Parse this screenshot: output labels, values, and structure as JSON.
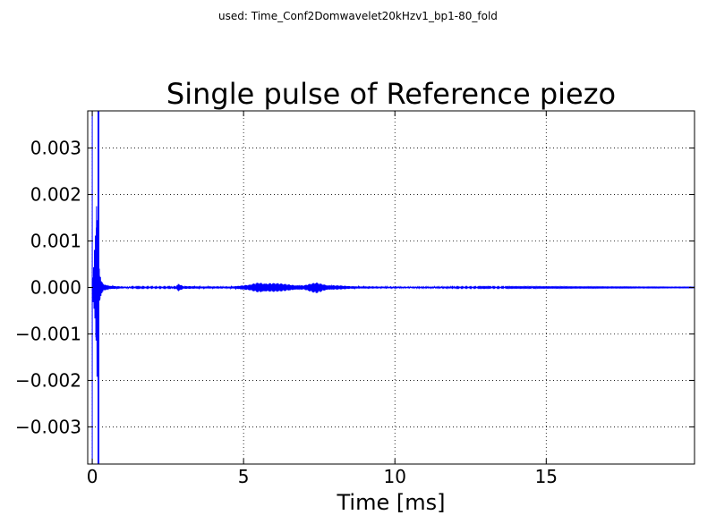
{
  "figure": {
    "suptitle": "used: Time_Conf2Domwavelet20kHzv1_bp1-80_fold"
  },
  "chart_data": {
    "type": "line",
    "title": "Single pulse of Reference piezo",
    "xlabel": "Time [ms]",
    "ylabel": "",
    "xlim": [
      -0.15,
      19.9
    ],
    "ylim": [
      -0.0038,
      0.0038
    ],
    "grid": true,
    "grid_style": "dotted",
    "line_color": "#0000ff",
    "x_ticks": [
      0,
      5,
      10,
      15
    ],
    "x_tick_labels": [
      "0",
      "5",
      "10",
      "15"
    ],
    "y_ticks": [
      0.003,
      0.002,
      0.001,
      0.0,
      -0.001,
      -0.002,
      -0.003
    ],
    "y_tick_labels": [
      "0.003",
      "0.002",
      "0.001",
      "0.000",
      "−0.001",
      "−0.002",
      "−0.003"
    ],
    "series": [
      {
        "color": "#0000ff",
        "envelope": [
          {
            "t": 0.0,
            "max": 0.0002,
            "min": -0.0003
          },
          {
            "t": 0.05,
            "max": 0.0005,
            "min": -0.0004
          },
          {
            "t": 0.1,
            "max": 0.0012,
            "min": -0.0008
          },
          {
            "t": 0.14,
            "max": 0.0022,
            "min": -0.0021
          },
          {
            "t": 0.17,
            "max": 0.0016,
            "min": -0.0022
          },
          {
            "t": 0.2,
            "max": 0.0007,
            "min": -0.0005
          },
          {
            "t": 0.25,
            "max": 0.0004,
            "min": -0.0004
          },
          {
            "t": 0.3,
            "max": 0.00015,
            "min": -0.00015
          },
          {
            "t": 0.4,
            "max": 8e-05,
            "min": -8e-05
          },
          {
            "t": 0.6,
            "max": 4e-05,
            "min": -4e-05
          },
          {
            "t": 1.0,
            "max": 2e-05,
            "min": -2e-05
          },
          {
            "t": 1.3,
            "max": 1e-05,
            "min": -1e-05
          },
          {
            "t": 2.75,
            "max": 1e-05,
            "min": -1e-05
          },
          {
            "t": 2.85,
            "max": 9e-05,
            "min": -9e-05
          },
          {
            "t": 3.0,
            "max": 3e-05,
            "min": -3e-05
          },
          {
            "t": 4.5,
            "max": 2e-05,
            "min": -2e-05
          },
          {
            "t": 5.2,
            "max": 6e-05,
            "min": -6e-05
          },
          {
            "t": 5.5,
            "max": 0.00012,
            "min": -0.00012
          },
          {
            "t": 6.0,
            "max": 0.0001,
            "min": -0.0001
          },
          {
            "t": 6.5,
            "max": 7e-05,
            "min": -7e-05
          },
          {
            "t": 7.0,
            "max": 5e-05,
            "min": -5e-05
          },
          {
            "t": 7.4,
            "max": 0.00011,
            "min": -0.00013
          },
          {
            "t": 7.8,
            "max": 6e-05,
            "min": -6e-05
          },
          {
            "t": 8.5,
            "max": 3e-05,
            "min": -3e-05
          },
          {
            "t": 9.5,
            "max": 2e-05,
            "min": -2e-05
          },
          {
            "t": 12.0,
            "max": 1e-05,
            "min": -1e-05
          },
          {
            "t": 19.9,
            "max": 5e-06,
            "min": -5e-06
          }
        ],
        "spikes": [
          {
            "t": 0.205,
            "value": 0.0038
          },
          {
            "t": 0.205,
            "value": -0.0038
          }
        ]
      }
    ],
    "vertical_lines": [
      {
        "x": 0.0,
        "color": "#0000ff"
      },
      {
        "x": 0.205,
        "color": "#0000ff"
      }
    ]
  }
}
